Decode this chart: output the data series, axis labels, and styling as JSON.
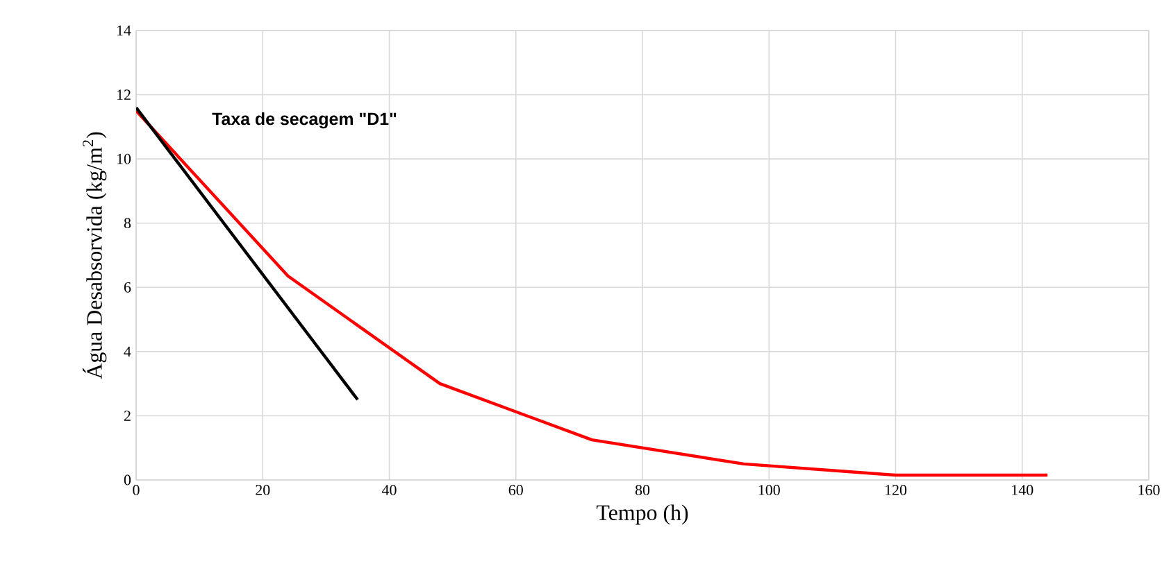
{
  "chart_data": {
    "type": "line",
    "xlabel": "Tempo (h)",
    "ylabel": "Água Desabsorvida (kg/m$^{2}$)",
    "xlim": [
      0,
      160
    ],
    "xticks": [
      0,
      20,
      40,
      60,
      80,
      100,
      120,
      140,
      160
    ],
    "ylim": [
      0,
      14
    ],
    "yticks": [
      0,
      2,
      4,
      6,
      8,
      10,
      12,
      14
    ],
    "grid": true,
    "marker": "none",
    "line_style": "solid",
    "series": [
      {
        "color": "#ff0000",
        "x": [
          0,
          24,
          48,
          72,
          96,
          120,
          144
        ],
        "values": [
          11.5,
          6.35,
          3.0,
          1.25,
          0.5,
          0.15,
          0.15
        ]
      },
      {
        "color": "#000000",
        "x": [
          0,
          35
        ],
        "values": [
          11.6,
          2.5
        ]
      }
    ],
    "annotations": [
      "Taxa de secagem \"D1\""
    ]
  }
}
